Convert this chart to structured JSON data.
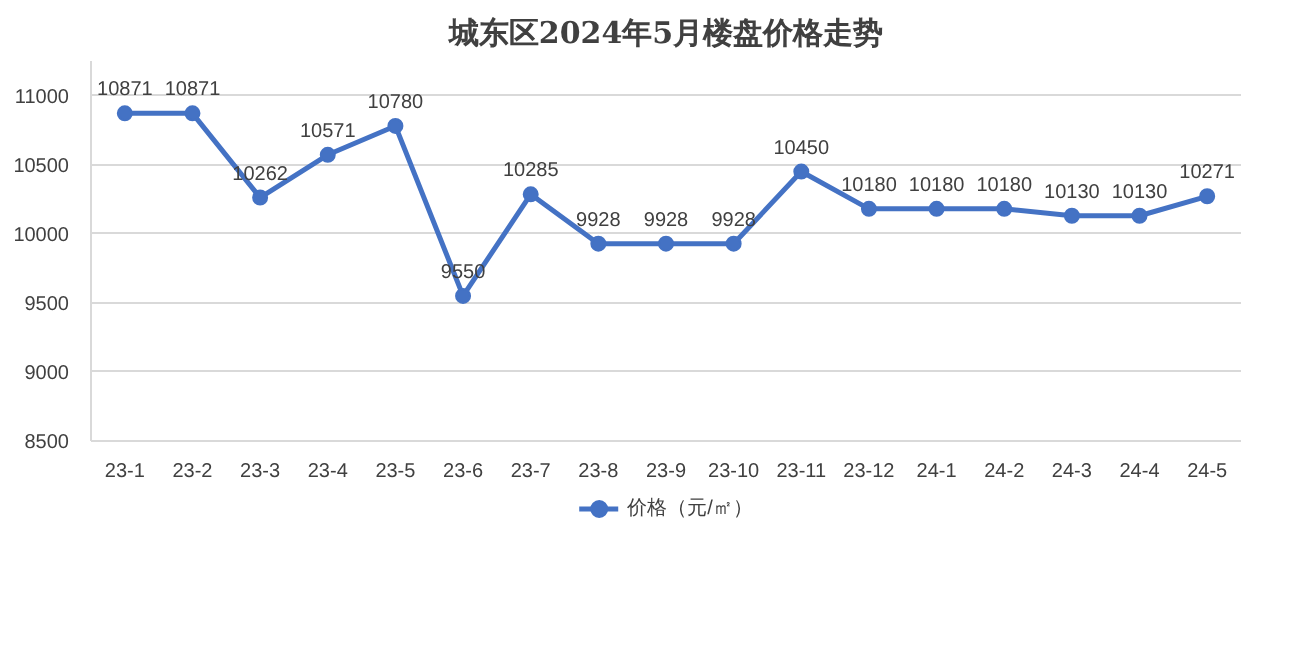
{
  "chart_data": {
    "type": "line",
    "title": "城东区2024年5月楼盘价格走势",
    "categories": [
      "23-1",
      "23-2",
      "23-3",
      "23-4",
      "23-5",
      "23-6",
      "23-7",
      "23-8",
      "23-9",
      "23-10",
      "23-11",
      "23-12",
      "24-1",
      "24-2",
      "24-3",
      "24-4",
      "24-5"
    ],
    "series": [
      {
        "name": "价格（元/㎡）",
        "color": "#4472c4",
        "values": [
          10871,
          10871,
          10262,
          10571,
          10780,
          9550,
          10285,
          9928,
          9928,
          9928,
          10450,
          10180,
          10180,
          10180,
          10130,
          10130,
          10271
        ]
      }
    ],
    "ylim": [
      8500,
      11250
    ],
    "yticks": [
      8500,
      9000,
      9500,
      10000,
      10500,
      11000
    ],
    "grid": "y",
    "legend": "bottom",
    "marker": "circle",
    "line_style": "solid",
    "data_labels": true
  }
}
